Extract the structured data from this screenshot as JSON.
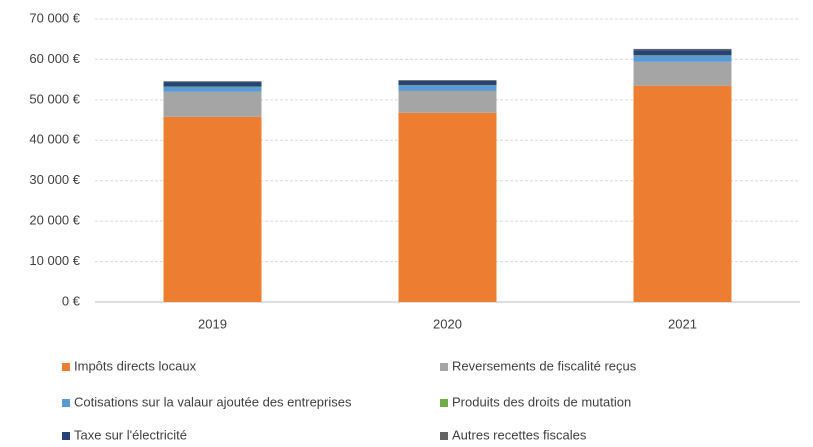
{
  "chart_data": {
    "type": "stacked_bar",
    "categories": [
      "2019",
      "2020",
      "2021"
    ],
    "series": [
      {
        "name": "Impôts directs locaux",
        "color": "#ed7d31",
        "values": [
          45800,
          46800,
          53500
        ]
      },
      {
        "name": "Reversements de fiscalité reçus",
        "color": "#a5a5a5",
        "values": [
          6200,
          5400,
          5900
        ]
      },
      {
        "name": "Cotisations sur la valaur ajoutée des entreprises",
        "color": "#5b9bd5",
        "values": [
          1200,
          1300,
          1500
        ]
      },
      {
        "name": "Produits des droits de mutation",
        "color": "#70ad47",
        "values": [
          100,
          100,
          100
        ]
      },
      {
        "name": "Taxe sur l'électricité",
        "color": "#264478",
        "values": [
          1100,
          1100,
          1300
        ]
      },
      {
        "name": "Autres recettes fiscales",
        "color": "#636363",
        "values": [
          200,
          200,
          300
        ]
      }
    ],
    "ylim": [
      0,
      70000
    ],
    "yticks": [
      {
        "value": 0,
        "label": "0 €"
      },
      {
        "value": 10000,
        "label": "10 000 €"
      },
      {
        "value": 20000,
        "label": "20 000 €"
      },
      {
        "value": 30000,
        "label": "30 000 €"
      },
      {
        "value": 40000,
        "label": "40 000 €"
      },
      {
        "value": 50000,
        "label": "50 000 €"
      },
      {
        "value": 60000,
        "label": "60 000 €"
      },
      {
        "value": 70000,
        "label": "70 000 €"
      }
    ],
    "grid": true,
    "legend": "bottom"
  }
}
